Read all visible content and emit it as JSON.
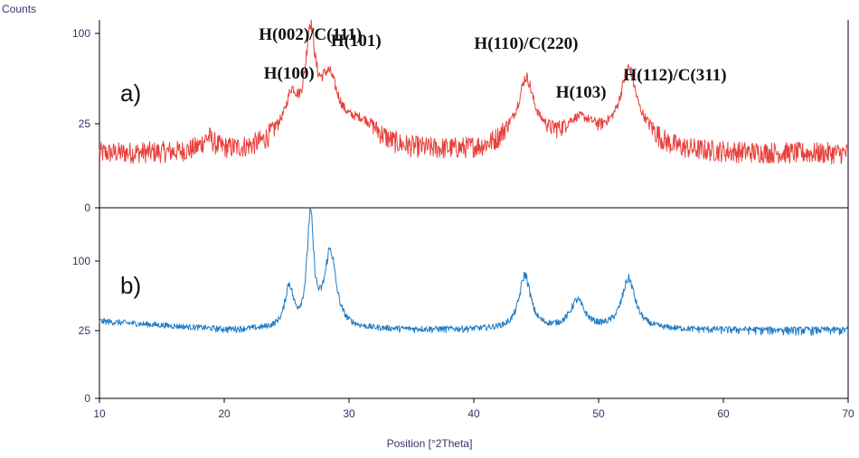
{
  "chart_data": {
    "type": "line",
    "ylabel": "Counts",
    "xlabel": "Position [°2Theta]",
    "xlim": [
      10,
      70
    ],
    "x_ticks": [
      "10",
      "20",
      "30",
      "40",
      "50",
      "60",
      "70"
    ],
    "grid": false,
    "panels": [
      {
        "label": "a)",
        "color": "#e8413c",
        "y_ticks": [
          "0",
          "25",
          "100"
        ],
        "y_tick_values": [
          0,
          25,
          100
        ],
        "baseline": 16,
        "noise": 3.2,
        "peaks": [
          {
            "x": 18.7,
            "height": 4,
            "width": 0.6
          },
          {
            "x": 25.4,
            "height": 28,
            "width": 0.55
          },
          {
            "x": 26.9,
            "height": 78,
            "width": 0.45
          },
          {
            "x": 28.4,
            "height": 44,
            "width": 0.9
          },
          {
            "x": 31.0,
            "height": 8,
            "width": 1.3
          },
          {
            "x": 44.2,
            "height": 46,
            "width": 0.7
          },
          {
            "x": 48.5,
            "height": 12,
            "width": 1.2
          },
          {
            "x": 52.4,
            "height": 54,
            "width": 0.75
          }
        ],
        "annotations": [
          {
            "text": "H(002)/C(111)",
            "x": 26.9
          },
          {
            "text": "H(100)",
            "x": 25.2
          },
          {
            "text": "H(101)",
            "x": 28.9
          },
          {
            "text": "H(110)/C(220)",
            "x": 44.2
          },
          {
            "text": "H(103)",
            "x": 48.6
          },
          {
            "text": "H(112)/C(311)",
            "x": 53.3
          }
        ]
      },
      {
        "label": "b)",
        "color": "#1f7bc4",
        "y_ticks": [
          "0",
          "25",
          "100"
        ],
        "y_tick_values": [
          0,
          25,
          100
        ],
        "baseline": 26,
        "noise": 3.0,
        "peaks": [
          {
            "x": 25.2,
            "height": 44,
            "width": 0.4
          },
          {
            "x": 26.9,
            "height": 118,
            "width": 0.32
          },
          {
            "x": 28.5,
            "height": 82,
            "width": 0.55
          },
          {
            "x": 44.1,
            "height": 58,
            "width": 0.55
          },
          {
            "x": 48.3,
            "height": 30,
            "width": 0.7
          },
          {
            "x": 52.4,
            "height": 54,
            "width": 0.65
          }
        ]
      }
    ]
  }
}
